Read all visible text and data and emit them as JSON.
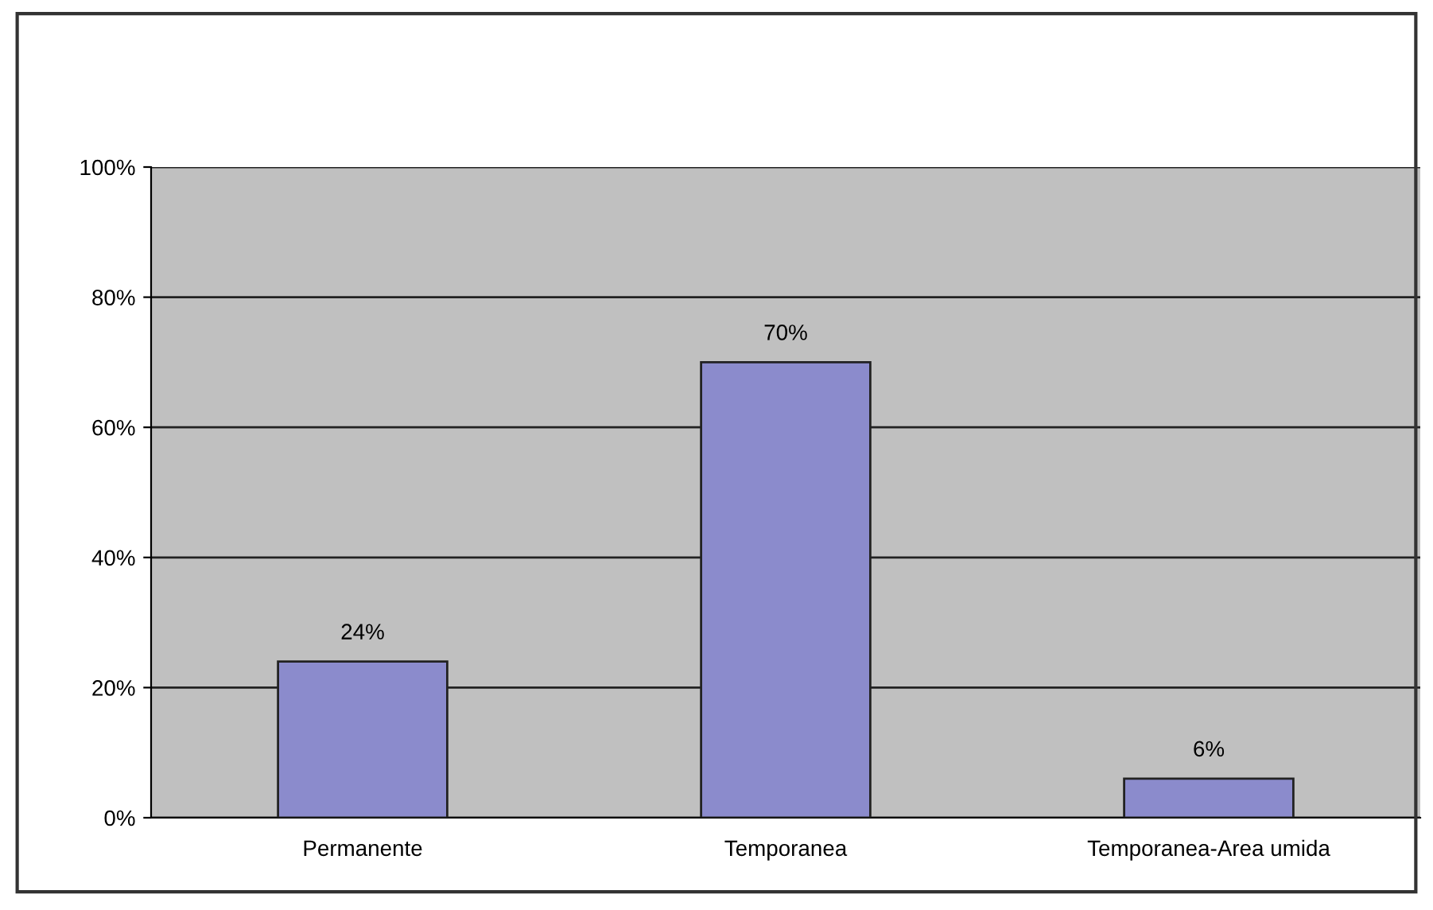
{
  "chart_data": {
    "type": "bar",
    "categories": [
      "Permanente",
      "Temporanea",
      "Temporanea-Area umida"
    ],
    "values": [
      24,
      70,
      6
    ],
    "value_labels": [
      "24%",
      "70%",
      "6%"
    ],
    "color": "#8b8bcc",
    "ylim": [
      0,
      100
    ],
    "yticks": [
      {
        "value": 0,
        "label": "0%"
      },
      {
        "value": 20,
        "label": "20%"
      },
      {
        "value": 40,
        "label": "40%"
      },
      {
        "value": 60,
        "label": "60%"
      },
      {
        "value": 80,
        "label": "80%"
      },
      {
        "value": 100,
        "label": "100%"
      }
    ],
    "grid": "y"
  }
}
